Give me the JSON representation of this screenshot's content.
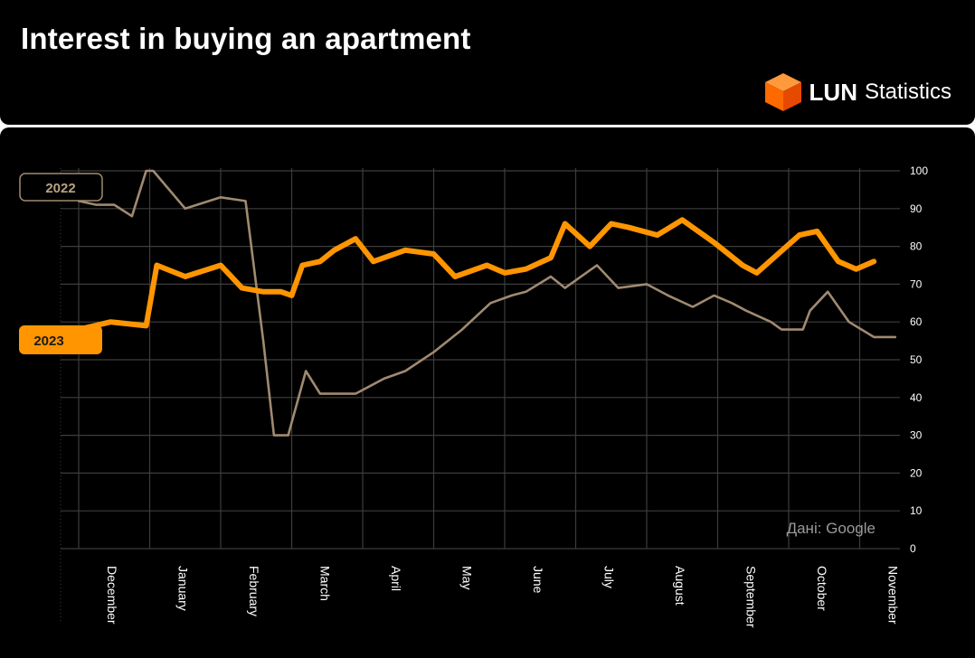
{
  "header": {
    "title": "Interest in buying an apartment",
    "brand_name": "LUN",
    "brand_sub": "Statistics"
  },
  "chart_data": {
    "type": "line",
    "title": "Interest in buying an apartment",
    "source": "Дані: Google",
    "ylim": [
      0,
      100
    ],
    "y_ticks": [
      "0",
      "10",
      "20",
      "30",
      "40",
      "50",
      "60",
      "70",
      "80",
      "90",
      "100"
    ],
    "x_ticks": [
      "December",
      "January",
      "February",
      "March",
      "April",
      "May",
      "June",
      "July",
      "August",
      "September",
      "October",
      "November"
    ],
    "grid": true,
    "colors": {
      "2022": "#a08a70",
      "2023": "#ff9500"
    },
    "series": [
      {
        "name": "2022",
        "x": [
          0,
          0.25,
          0.5,
          0.75,
          0.95,
          1.05,
          1.5,
          2.0,
          2.35,
          2.6,
          2.75,
          2.95,
          3.2,
          3.4,
          3.55,
          3.9,
          4.1,
          4.3,
          4.6,
          5.0,
          5.4,
          5.8,
          6.1,
          6.3,
          6.65,
          6.85,
          7.3,
          7.6,
          8.0,
          8.3,
          8.65,
          8.95,
          9.2,
          9.4,
          9.75,
          9.9,
          10.2,
          10.3,
          10.55,
          10.85,
          11.2,
          11.5
        ],
        "y": [
          92,
          91,
          91,
          88,
          100,
          100,
          90,
          93,
          92,
          55,
          30,
          30,
          47,
          41,
          41,
          41,
          43,
          45,
          47,
          52,
          58,
          65,
          67,
          68,
          72,
          69,
          75,
          69,
          70,
          67,
          64,
          67,
          65,
          63,
          60,
          58,
          58,
          63,
          68,
          60,
          56,
          56
        ]
      },
      {
        "name": "2023",
        "x": [
          0,
          0.45,
          0.95,
          1.1,
          1.5,
          2.0,
          2.3,
          2.6,
          2.85,
          3.0,
          3.15,
          3.4,
          3.6,
          3.9,
          4.15,
          4.6,
          5.0,
          5.3,
          5.75,
          6.0,
          6.3,
          6.65,
          6.85,
          7.2,
          7.5,
          7.75,
          8.15,
          8.5,
          8.95,
          9.35,
          9.55,
          10.15,
          10.4,
          10.7,
          10.95,
          11.2
        ],
        "y": [
          58,
          60,
          59,
          75,
          72,
          75,
          69,
          68,
          68,
          67,
          75,
          76,
          79,
          82,
          76,
          79,
          78,
          72,
          75,
          73,
          74,
          77,
          86,
          80,
          86,
          85,
          83,
          87,
          81,
          75,
          73,
          83,
          84,
          76,
          74,
          76
        ]
      }
    ]
  }
}
